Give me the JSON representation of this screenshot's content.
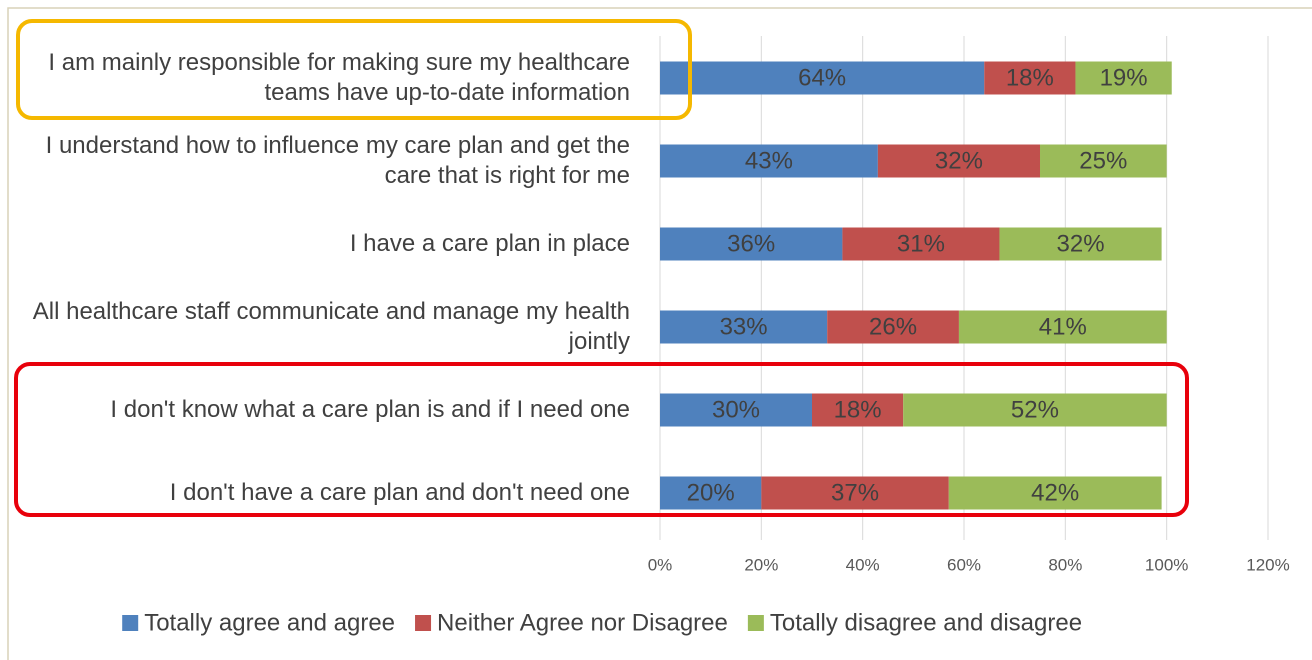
{
  "chart_data": {
    "type": "stacked_barh",
    "categories": [
      "I am mainly responsible for making sure my healthcare teams have up-to-date information",
      "I understand how to influence my care plan and get the care that is right for me",
      "I have a care plan in place",
      "All healthcare staff communicate and manage my health jointly",
      "I don't know what a care plan is and if I need one",
      "I don't have a care plan and don't need one"
    ],
    "series": [
      {
        "name": "Totally agree and agree",
        "color": "#4f81bd",
        "values": [
          64,
          43,
          36,
          33,
          30,
          20
        ],
        "value_labels": [
          "64%",
          "43%",
          "36%",
          "33%",
          "30%",
          "20%"
        ]
      },
      {
        "name": "Neither Agree nor Disagree",
        "color": "#c0504d",
        "values": [
          18,
          32,
          31,
          26,
          18,
          37
        ],
        "value_labels": [
          "18%",
          "32%",
          "31%",
          "26%",
          "18%",
          "37%"
        ]
      },
      {
        "name": "Totally disagree and disagree",
        "color": "#9bbb59",
        "values": [
          19,
          25,
          32,
          41,
          52,
          42
        ],
        "value_labels": [
          "19%",
          "25%",
          "32%",
          "41%",
          "52%",
          "42%"
        ]
      }
    ],
    "xlim": [
      0,
      120
    ],
    "xticks": [
      {
        "value": 0,
        "label": "0%"
      },
      {
        "value": 20,
        "label": "20%"
      },
      {
        "value": 40,
        "label": "40%"
      },
      {
        "value": 60,
        "label": "60%"
      },
      {
        "value": 80,
        "label": "80%"
      },
      {
        "value": 100,
        "label": "100%"
      },
      {
        "value": 120,
        "label": "120%"
      }
    ],
    "grid": true,
    "legend": "bottom"
  }
}
